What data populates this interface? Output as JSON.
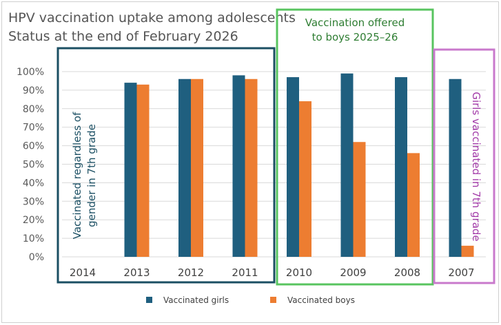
{
  "chart_data": {
    "type": "bar",
    "title": "HPV vaccination uptake among adolescents",
    "subtitle": "Status at the end of February 2026",
    "categories": [
      "2014",
      "2013",
      "2012",
      "2011",
      "2010",
      "2009",
      "2008",
      "2007"
    ],
    "series": [
      {
        "name": "Vaccinated girls",
        "color": "#1f5f7f",
        "values": [
          null,
          94,
          96,
          98,
          97,
          99,
          97,
          96
        ]
      },
      {
        "name": "Vaccinated boys",
        "color": "#ed7d31",
        "values": [
          null,
          93,
          96,
          96,
          84,
          62,
          56,
          6
        ]
      }
    ],
    "ylim": [
      0,
      100
    ],
    "yticks": [
      "0%",
      "10%",
      "20%",
      "30%",
      "40%",
      "50%",
      "60%",
      "70%",
      "80%",
      "90%",
      "100%"
    ],
    "grid": true,
    "legend_position": "bottom",
    "annotations": [
      {
        "id": "regardless",
        "color": "#1b4f63",
        "categories": [
          "2014",
          "2011"
        ],
        "lines": [
          "Vaccinated regardless of",
          "gender in 7th grade"
        ]
      },
      {
        "id": "offered",
        "color": "#58c45f",
        "categories": [
          "2010",
          "2008"
        ],
        "lines": [
          "Vaccination offered",
          "to boys 2025–26"
        ]
      },
      {
        "id": "girls-only",
        "color": "#c979cc",
        "categories": [
          "2007",
          "2007"
        ],
        "lines": [
          "Girls vaccinated in 7th grade"
        ]
      }
    ]
  }
}
